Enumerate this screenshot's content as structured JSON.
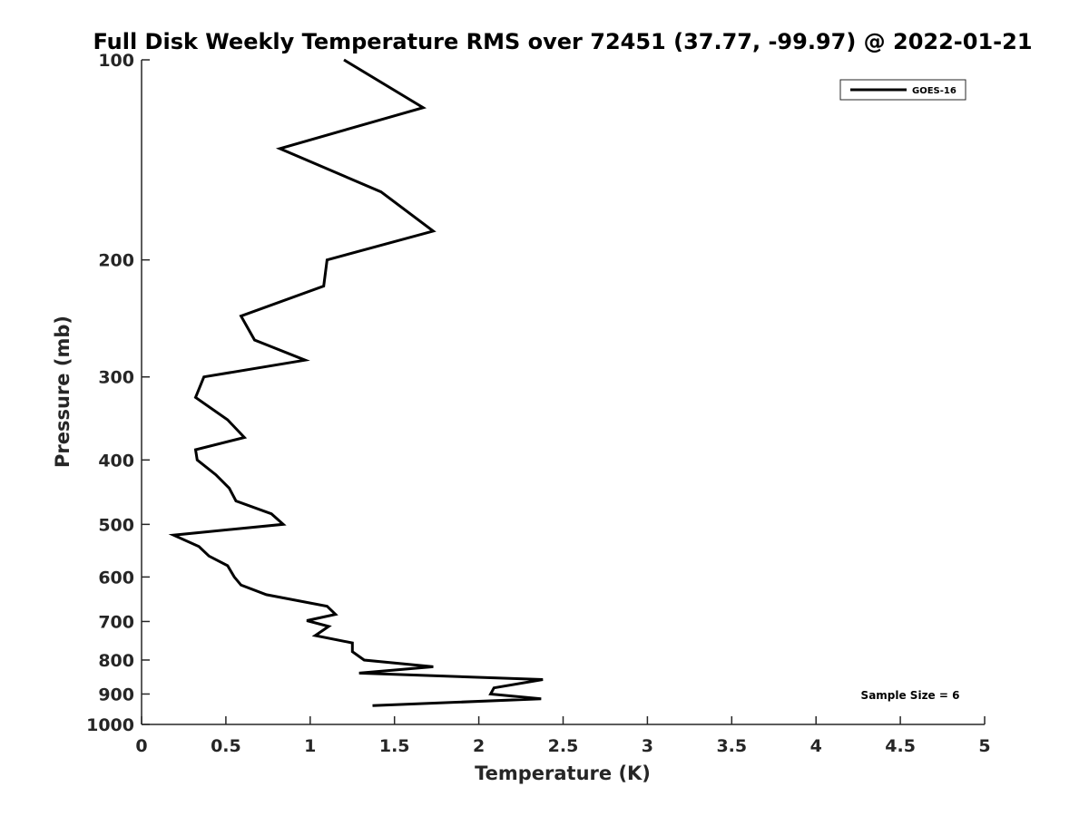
{
  "chart_data": {
    "type": "line",
    "title": "Full Disk Weekly Temperature RMS over 72451 (37.77, -99.97) @ 2022-01-21",
    "xlabel": "Temperature (K)",
    "ylabel": "Pressure (mb)",
    "xlim": [
      0,
      5
    ],
    "ylim": [
      100,
      1000
    ],
    "yscale": "log",
    "yreversed": true,
    "grid": false,
    "x_ticks": [
      0,
      0.5,
      1,
      1.5,
      2,
      2.5,
      3,
      3.5,
      4,
      4.5,
      5
    ],
    "x_tick_labels": [
      "0",
      "0.5",
      "1",
      "1.5",
      "2",
      "2.5",
      "3",
      "3.5",
      "4",
      "4.5",
      "5"
    ],
    "y_ticks": [
      100,
      200,
      300,
      400,
      500,
      600,
      700,
      800,
      900,
      1000
    ],
    "y_tick_labels": [
      "100",
      "200",
      "300",
      "400",
      "500",
      "600",
      "700",
      "800",
      "900",
      "1000"
    ],
    "legend": {
      "position": "top-right",
      "entries": [
        "GOES-16"
      ]
    },
    "annotation": "Sample Size = 6",
    "series": [
      {
        "name": "GOES-16",
        "color": "#000000",
        "points": [
          [
            1.2,
            100
          ],
          [
            1.67,
            118
          ],
          [
            0.82,
            136
          ],
          [
            1.42,
            158
          ],
          [
            1.73,
            181
          ],
          [
            1.1,
            200
          ],
          [
            1.08,
            219
          ],
          [
            0.59,
            243
          ],
          [
            0.67,
            264
          ],
          [
            0.97,
            283
          ],
          [
            0.37,
            300
          ],
          [
            0.32,
            322
          ],
          [
            0.51,
            348
          ],
          [
            0.61,
            370
          ],
          [
            0.32,
            386
          ],
          [
            0.33,
            400
          ],
          [
            0.44,
            421
          ],
          [
            0.52,
            441
          ],
          [
            0.56,
            461
          ],
          [
            0.77,
            482
          ],
          [
            0.84,
            500
          ],
          [
            0.19,
            519
          ],
          [
            0.34,
            540
          ],
          [
            0.4,
            558
          ],
          [
            0.51,
            577
          ],
          [
            0.55,
            600
          ],
          [
            0.59,
            617
          ],
          [
            0.74,
            638
          ],
          [
            1.1,
            664
          ],
          [
            1.15,
            683
          ],
          [
            0.98,
            698
          ],
          [
            1.11,
            712
          ],
          [
            1.03,
            735
          ],
          [
            1.25,
            754
          ],
          [
            1.25,
            777
          ],
          [
            1.32,
            800
          ],
          [
            1.73,
            819
          ],
          [
            1.29,
            837
          ],
          [
            2.38,
            856
          ],
          [
            2.09,
            881
          ],
          [
            2.07,
            900
          ],
          [
            2.37,
            915
          ],
          [
            1.37,
            937
          ]
        ]
      }
    ]
  }
}
